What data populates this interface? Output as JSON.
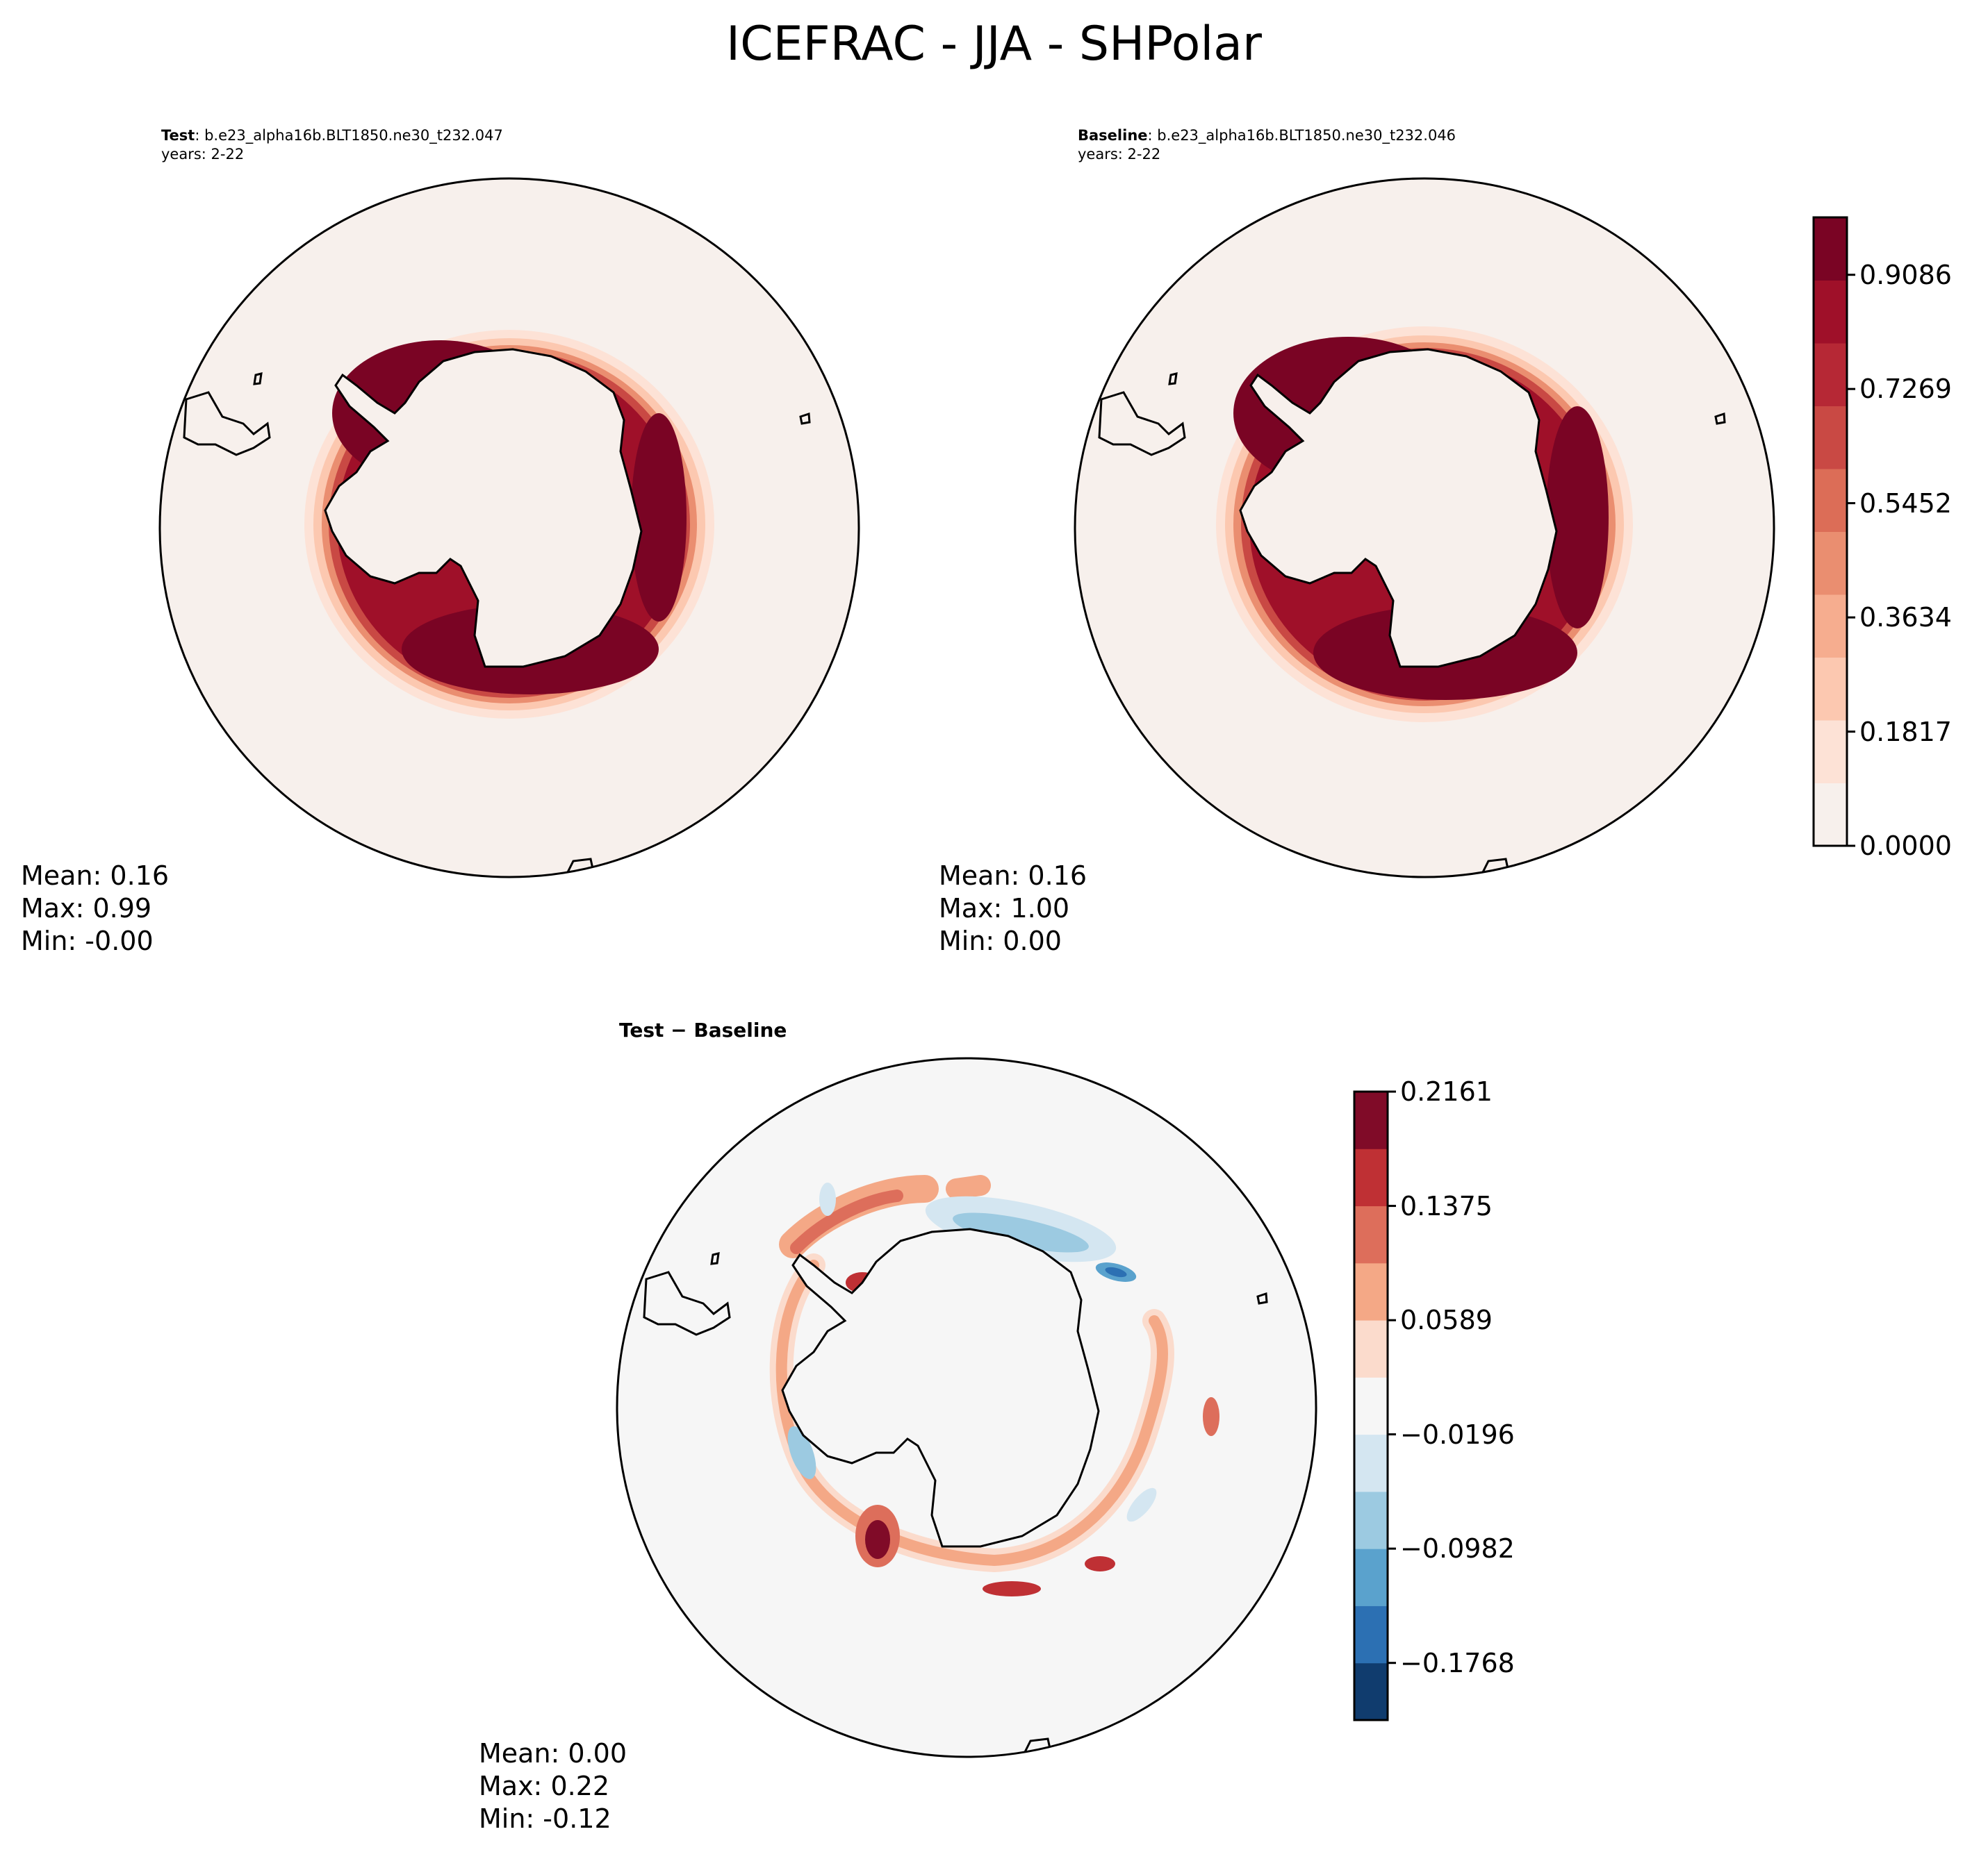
{
  "title": "ICEFRAC - JJA - SHPolar",
  "panels": {
    "test": {
      "label": "Test",
      "case": ": b.e23_alpha16b.BLT1850.ne30_t232.047",
      "years": "years: 2-22",
      "stats": {
        "mean": "Mean:  0.16",
        "max": "Max:  0.99",
        "min": "Min: -0.00"
      }
    },
    "baseline": {
      "label": "Baseline",
      "case": ": b.e23_alpha16b.BLT1850.ne30_t232.046",
      "years": "years: 2-22",
      "stats": {
        "mean": "Mean:  0.16",
        "max": "Max:  1.00",
        "min": "Min:  0.00"
      }
    },
    "diff": {
      "label": "Test − Baseline",
      "stats": {
        "mean": "Mean:  0.00",
        "max": "Max:  0.22",
        "min": "Min: -0.12"
      }
    }
  },
  "colorbars": {
    "main": {
      "ticks": [
        "0.9086",
        "0.7269",
        "0.5452",
        "0.3634",
        "0.1817",
        "0.0000"
      ],
      "tick_values": [
        0.9086,
        0.7269,
        0.5452,
        0.3634,
        0.1817,
        0.0
      ],
      "range": [
        0.0,
        1.0
      ],
      "colors": [
        "#f7f0ec",
        "#fde2d6",
        "#fcc8b0",
        "#f6ad8f",
        "#ea8e70",
        "#dc6d57",
        "#c94944",
        "#b62835",
        "#9f1029",
        "#7a0424"
      ]
    },
    "diff": {
      "ticks": [
        "0.2161",
        "0.1375",
        "0.0589",
        "−0.0196",
        "−0.0982",
        "−0.1768"
      ],
      "tick_values": [
        0.2161,
        0.1375,
        0.0589,
        -0.0196,
        -0.0982,
        -0.1768
      ],
      "range": [
        -0.2161,
        0.2161
      ],
      "colors": [
        "#103c6e",
        "#2c70b3",
        "#5aa2cd",
        "#9ccae1",
        "#d4e6f1",
        "#f6f6f6",
        "#fbdbcc",
        "#f4a886",
        "#dd6e5b",
        "#bf3034",
        "#800b28"
      ]
    }
  }
}
